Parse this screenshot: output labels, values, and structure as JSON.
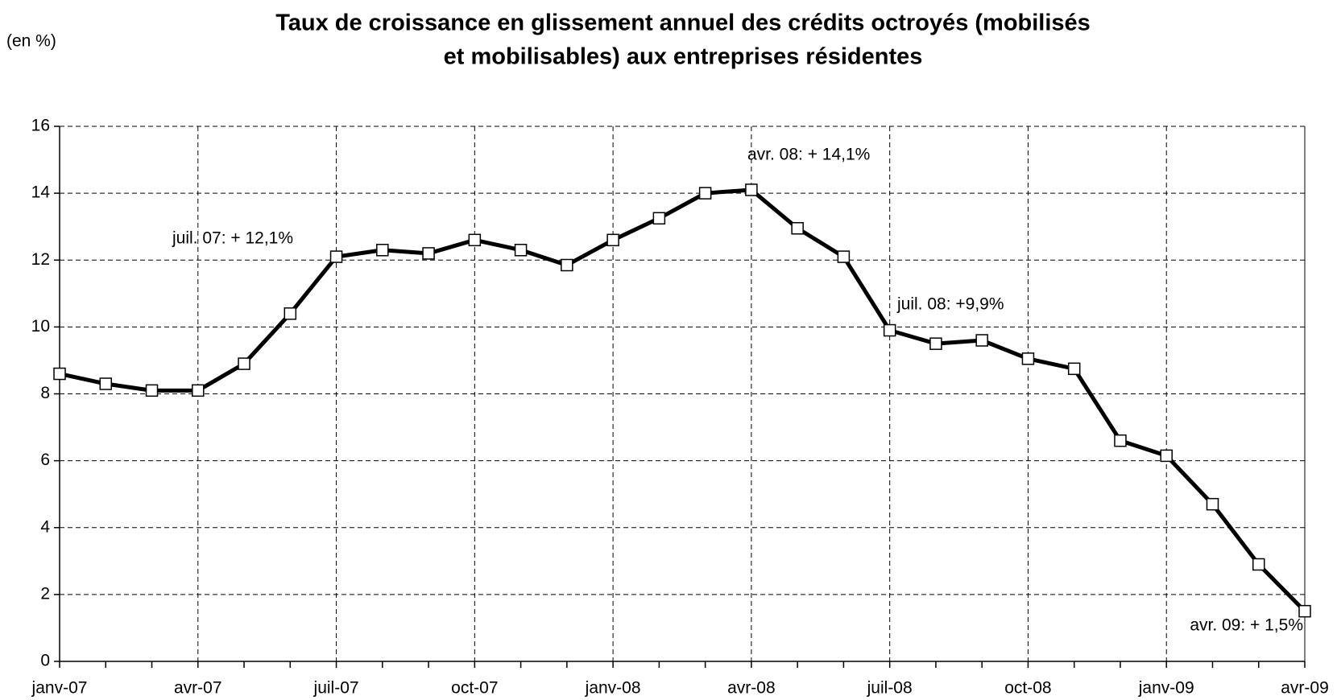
{
  "chart_data": {
    "type": "line",
    "title": [
      "Taux de croissance en glissement annuel des crédits octroyés (mobilisés",
      "et mobilisables) aux entreprises résidentes"
    ],
    "y_label": "(en %)",
    "categories": [
      "janv-07",
      null,
      null,
      "avr-07",
      null,
      null,
      "juil-07",
      null,
      null,
      "oct-07",
      null,
      null,
      "janv-08",
      null,
      null,
      "avr-08",
      null,
      null,
      "juil-08",
      null,
      null,
      "oct-08",
      null,
      null,
      "janv-09",
      null,
      null,
      "avr-09"
    ],
    "series": [
      {
        "name": "Taux de croissance",
        "color": "#000000",
        "values": [
          8.6,
          8.3,
          8.1,
          8.1,
          8.9,
          10.4,
          12.1,
          12.3,
          12.2,
          12.6,
          12.3,
          11.85,
          12.6,
          13.25,
          14.0,
          14.1,
          12.95,
          12.1,
          9.9,
          9.5,
          9.6,
          9.05,
          8.75,
          6.6,
          6.15,
          4.7,
          2.9,
          1.5
        ]
      }
    ],
    "annotations": [
      "juil. 07: + 12,1%",
      "avr. 08: + 14,1%",
      "juil. 08: +9,9%",
      "avr. 09: + 1,5%"
    ],
    "ylim": [
      0,
      16
    ],
    "yticks": [
      0,
      2,
      4,
      6,
      8,
      10,
      12,
      14,
      16
    ],
    "grid": true
  }
}
